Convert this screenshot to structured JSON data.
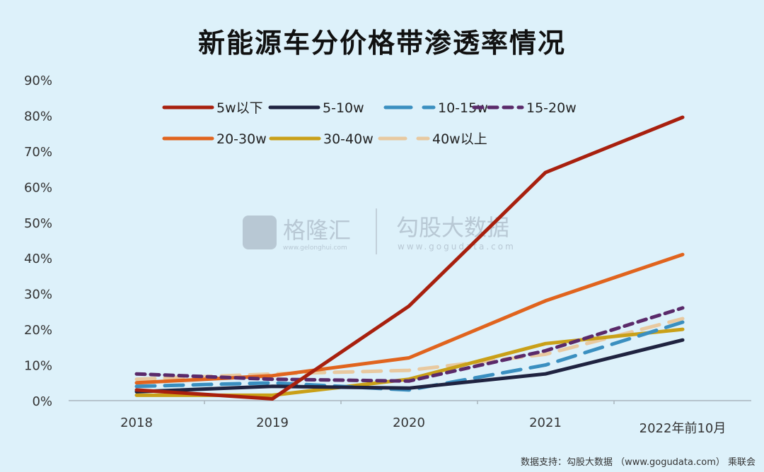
{
  "title": "新能源车分价格带渗透率情况",
  "source": "数据支持：勾股大数据 （www.gogudata.com） 乘联会",
  "watermark": {
    "left": "格隆汇",
    "left_url": "www.gelonghui.com",
    "right": "勾股大数据",
    "right_url": "www.gogudata.com"
  },
  "chart_data": {
    "type": "line",
    "title": "新能源车分价格带渗透率情况",
    "categories": [
      "2018",
      "2019",
      "2020",
      "2021",
      "2022年前10月"
    ],
    "yticks": [
      "0%",
      "10%",
      "20%",
      "30%",
      "40%",
      "50%",
      "60%",
      "70%",
      "80%",
      "90%"
    ],
    "ylim": [
      0,
      90
    ],
    "grid": false,
    "legend_position": "top-left",
    "series": [
      {
        "name": "5w以下",
        "color": "#a8200e",
        "dash": "solid",
        "values": [
          3,
          0.5,
          26.5,
          64,
          79.5
        ]
      },
      {
        "name": "5-10w",
        "color": "#1f2340",
        "dash": "solid",
        "values": [
          2.5,
          4,
          3.5,
          7.5,
          17
        ]
      },
      {
        "name": "10-15w",
        "color": "#3a8fc0",
        "dash": "long-dash",
        "values": [
          4,
          5,
          3,
          10,
          22
        ]
      },
      {
        "name": "15-20w",
        "color": "#5a2a6a",
        "dash": "short-dash",
        "values": [
          7.5,
          6,
          5.5,
          14,
          26
        ]
      },
      {
        "name": "20-30w",
        "color": "#e0641e",
        "dash": "solid",
        "values": [
          5,
          7,
          12,
          28,
          41
        ]
      },
      {
        "name": "30-40w",
        "color": "#c9a018",
        "dash": "solid",
        "values": [
          1.5,
          1.5,
          6,
          16,
          20
        ]
      },
      {
        "name": "40w以上",
        "color": "#e8c9a0",
        "dash": "long-dash",
        "values": [
          6,
          7.5,
          8.5,
          13,
          23
        ]
      }
    ]
  }
}
